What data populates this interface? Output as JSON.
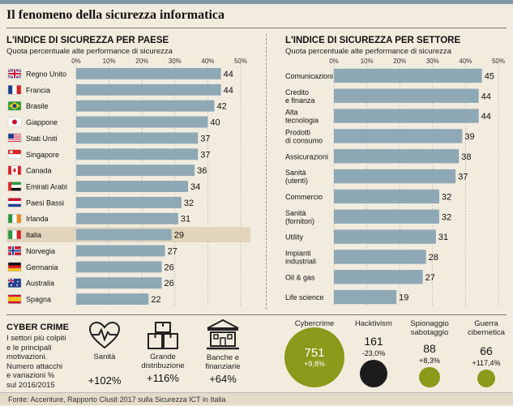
{
  "title": "Il fenomeno della sicurezza informatica",
  "colors": {
    "bar": "#8fa8b6",
    "highlight_row": "#e1d4bc",
    "green": "#8a9a1a",
    "dark": "#222222"
  },
  "left_section": {
    "title": "L'INDICE DI SICUREZZA PER PAESE",
    "subtitle": "Quota percentuale alte performance di sicurezza"
  },
  "right_section": {
    "title": "L'INDICE DI SICUREZZA PER SETTORE",
    "subtitle": "Quota percentuale alte performance di sicurezza"
  },
  "chart_data": [
    {
      "type": "bar",
      "orientation": "horizontal",
      "title": "L'INDICE DI SICUREZZA PER PAESE",
      "subtitle": "Quota percentuale alte performance di sicurezza",
      "xlim": [
        0,
        50
      ],
      "ticks": [
        "0%",
        "10%",
        "20%",
        "30%",
        "40%",
        "50%"
      ],
      "grid": true,
      "highlight": "Italia",
      "categories": [
        "Regno Unito",
        "Francia",
        "Brasile",
        "Giappone",
        "Stati Uniti",
        "Singapore",
        "Canada",
        "Emirati Arabi",
        "Paesi Bassi",
        "Irlanda",
        "Italia",
        "Norvegia",
        "Germania",
        "Australia",
        "Spagna"
      ],
      "flags": [
        "uk-flag-icon",
        "france-flag-icon",
        "brazil-flag-icon",
        "japan-flag-icon",
        "usa-flag-icon",
        "singapore-flag-icon",
        "canada-flag-icon",
        "uae-flag-icon",
        "netherlands-flag-icon",
        "ireland-flag-icon",
        "italy-flag-icon",
        "norway-flag-icon",
        "germany-flag-icon",
        "australia-flag-icon",
        "spain-flag-icon"
      ],
      "values": [
        44,
        44,
        42,
        40,
        37,
        37,
        36,
        34,
        32,
        31,
        29,
        27,
        26,
        26,
        22
      ]
    },
    {
      "type": "bar",
      "orientation": "horizontal",
      "title": "L'INDICE DI SICUREZZA PER SETTORE",
      "subtitle": "Quota percentuale alte performance di sicurezza",
      "xlim": [
        0,
        50
      ],
      "ticks": [
        "0%",
        "10%",
        "20%",
        "30%",
        "40%",
        "50%"
      ],
      "grid": true,
      "categories": [
        [
          "Comunicazioni"
        ],
        [
          "Credito",
          "e finanza"
        ],
        [
          "Alta",
          "tecnologia"
        ],
        [
          "Prodotti",
          "di consumo"
        ],
        [
          "Assicurazioni"
        ],
        [
          "Sanità",
          "(utenti)"
        ],
        [
          "Commercio"
        ],
        [
          "Sanità",
          "(fornitori)"
        ],
        [
          "Utility"
        ],
        [
          "Impianti",
          "industriali"
        ],
        [
          "Oil & gas"
        ],
        [
          "Life science"
        ]
      ],
      "values": [
        45,
        44,
        44,
        39,
        38,
        37,
        32,
        32,
        31,
        28,
        27,
        19
      ]
    }
  ],
  "cyber_crime": {
    "title": "CYBER CRIME",
    "body": [
      "I settori più colpiti",
      "e le principali",
      "motivazioni.",
      "Numero attacchi",
      "e variazioni %",
      "sul 2016/2015"
    ],
    "categories": [
      {
        "icon": "heartbeat-icon",
        "label": [
          "Sanità"
        ],
        "change": "+102%"
      },
      {
        "icon": "boxes-icon",
        "label": [
          "Grande",
          "distribuzione"
        ],
        "change": "+116%"
      },
      {
        "icon": "bank-icon",
        "label": [
          "Banche e",
          "finanziarie"
        ],
        "change": "+64%"
      }
    ],
    "attacks": [
      {
        "label": [
          "Cybercrime"
        ],
        "value": 751,
        "change": "+9,8%",
        "color": "#8a9a1a"
      },
      {
        "label": [
          "Hacktivism"
        ],
        "value": 161,
        "change": "-23,0%",
        "color": "#1c1c1c"
      },
      {
        "label": [
          "Spionaggio",
          "sabotaggio"
        ],
        "value": 88,
        "change": "+8,3%",
        "color": "#8a9a1a"
      },
      {
        "label": [
          "Guerra",
          "cibernetica"
        ],
        "value": 66,
        "change": "+117,4%",
        "color": "#8a9a1a"
      }
    ]
  },
  "source": "Fonte: Accenture, Rapporto Clusit 2017 sulla Sicurezza ICT in Italia"
}
